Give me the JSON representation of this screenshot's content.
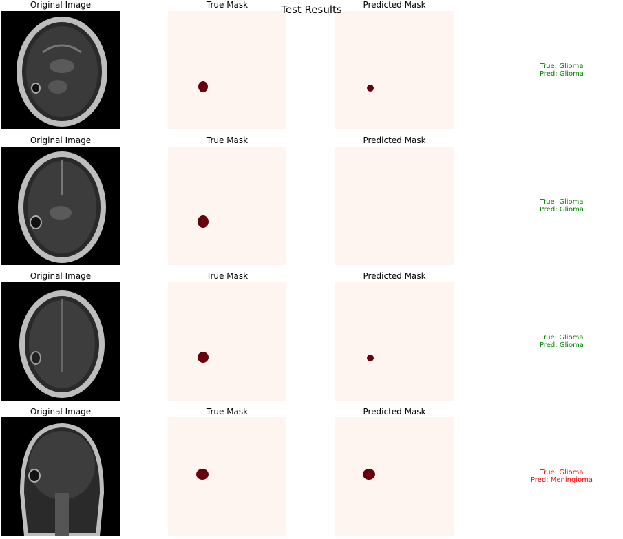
{
  "figure": {
    "suptitle": "Test Results",
    "colors": {
      "mask_background": "#fff5f0",
      "mask_lesion": "#67000d",
      "correct": "#008000",
      "incorrect": "#ff0000"
    },
    "rows": [
      {
        "original_title": "Original Image",
        "true_mask_title": "True Mask",
        "pred_mask_title": "Predicted Mask",
        "true_label": "True: Glioma",
        "pred_label": "Pred: Glioma",
        "correct": true
      },
      {
        "original_title": "Original Image",
        "true_mask_title": "True Mask",
        "pred_mask_title": "Predicted Mask",
        "true_label": "True: Glioma",
        "pred_label": "Pred: Glioma",
        "correct": true
      },
      {
        "original_title": "Original Image",
        "true_mask_title": "True Mask",
        "pred_mask_title": "Predicted Mask",
        "true_label": "True: Glioma",
        "pred_label": "Pred: Glioma",
        "correct": true
      },
      {
        "original_title": "Original Image",
        "true_mask_title": "True Mask",
        "pred_mask_title": "Predicted Mask",
        "true_label": "True: Glioma",
        "pred_label": "Pred: Meningioma",
        "correct": false
      }
    ]
  }
}
